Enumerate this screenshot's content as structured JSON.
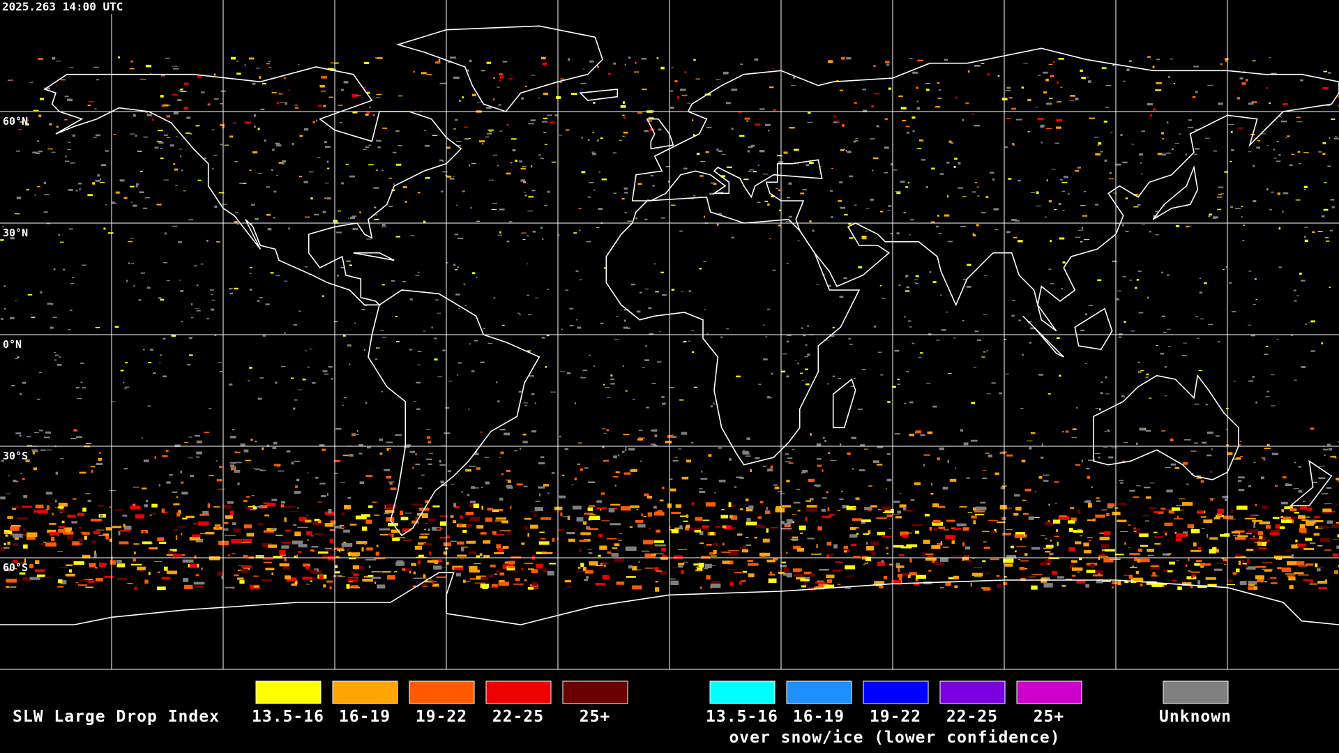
{
  "header": {
    "timestamp": "2025.263 14:00 UTC"
  },
  "map": {
    "latitude_labels": [
      "60°N",
      "30°N",
      "0°N",
      "30°S",
      "60°S"
    ]
  },
  "legend": {
    "title": "SLW Large Drop Index",
    "liquid": [
      {
        "label": "13.5-16",
        "color": "#ffff00"
      },
      {
        "label": "16-19",
        "color": "#ffa500"
      },
      {
        "label": "19-22",
        "color": "#ff5a00"
      },
      {
        "label": "22-25",
        "color": "#ee0000"
      },
      {
        "label": "25+",
        "color": "#6a0000"
      }
    ],
    "snow_ice": [
      {
        "label": "13.5-16",
        "color": "#00ffff"
      },
      {
        "label": "16-19",
        "color": "#1e90ff"
      },
      {
        "label": "19-22",
        "color": "#0000ff"
      },
      {
        "label": "22-25",
        "color": "#7a00e0"
      },
      {
        "label": "25+",
        "color": "#cc00cc"
      }
    ],
    "snow_ice_note": "over snow/ice (lower confidence)",
    "unknown": {
      "label": "Unknown",
      "color": "#808080"
    }
  }
}
